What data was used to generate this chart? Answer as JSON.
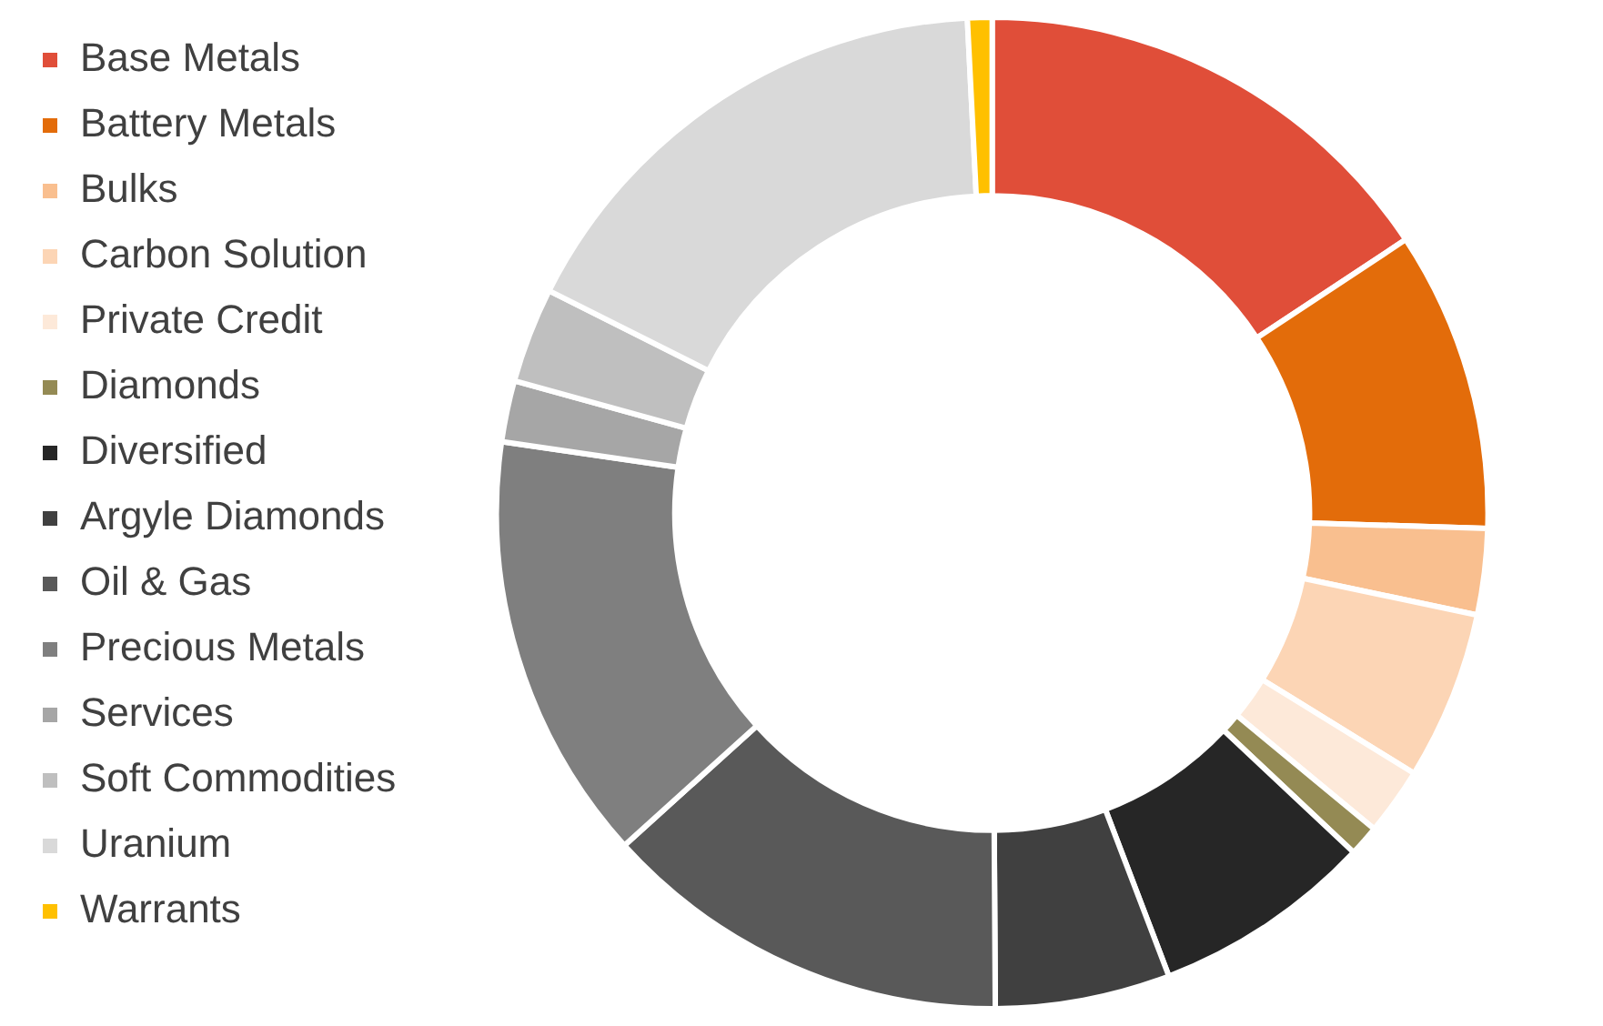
{
  "chart_data": {
    "type": "donut",
    "categories": [
      "Base Metals",
      "Battery Metals",
      "Bulks",
      "Carbon Solution",
      "Private Credit",
      "Diamonds",
      "Diversified",
      "Argyle Diamonds",
      "Oil & Gas",
      "Precious Metals",
      "Services",
      "Soft Commodities",
      "Uranium",
      "Warrants"
    ],
    "values": [
      15.7,
      9.8,
      2.8,
      5.5,
      2.2,
      1.0,
      7.2,
      5.7,
      13.4,
      14.0,
      2.0,
      3.1,
      16.8,
      0.8
    ],
    "colors": [
      "#e04e39",
      "#e36c0a",
      "#f9bf8f",
      "#fcd5b5",
      "#fde9d9",
      "#948a54",
      "#262626",
      "#404040",
      "#595959",
      "#7f7f7f",
      "#a6a6a6",
      "#bfbfbf",
      "#d9d9d9",
      "#ffc000"
    ],
    "legend": "left"
  }
}
